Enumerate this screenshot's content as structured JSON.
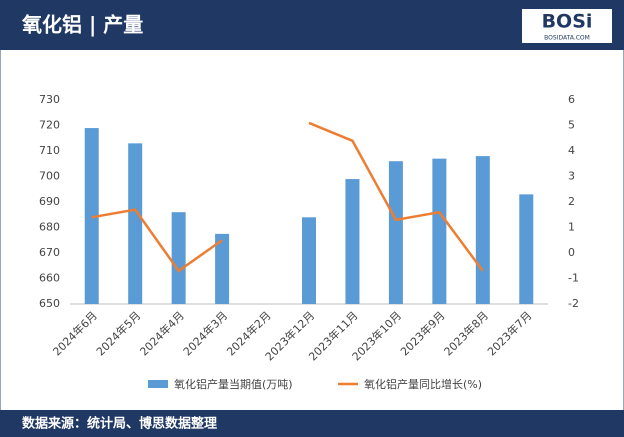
{
  "header": {
    "title": "氧化铝 | 产量",
    "logo": "BOSi",
    "logo_sub": "BOSIDATA.COM"
  },
  "chart_data": {
    "type": "bar-line",
    "categories": [
      "2024年6月",
      "2024年5月",
      "2024年4月",
      "2024年3月",
      "2024年2月",
      "2023年12月",
      "2023年11月",
      "2023年10月",
      "2023年9月",
      "2023年8月",
      "2023年7月"
    ],
    "series": [
      {
        "name": "氧化铝产量当期值(万吨)",
        "type": "bar",
        "color": "#5b9bd5",
        "values": [
          719,
          713,
          686,
          677.5,
          null,
          684,
          699,
          706,
          707,
          708,
          693
        ]
      },
      {
        "name": "氧化铝产量同比增长(%)",
        "type": "line",
        "axis": "y2",
        "color": "#ed7d31",
        "values": [
          1.4,
          1.7,
          -0.7,
          0.5,
          null,
          5.1,
          4.4,
          1.3,
          1.6,
          -0.7,
          null
        ]
      }
    ],
    "ylim": [
      650,
      730
    ],
    "yticks": [
      650,
      660,
      670,
      680,
      690,
      700,
      710,
      720,
      730
    ],
    "y2lim": [
      -2,
      6
    ],
    "y2ticks": [
      -2,
      -1,
      0,
      1,
      2,
      3,
      4,
      5,
      6
    ]
  },
  "footer": "数据来源：统计局、博思数据整理"
}
